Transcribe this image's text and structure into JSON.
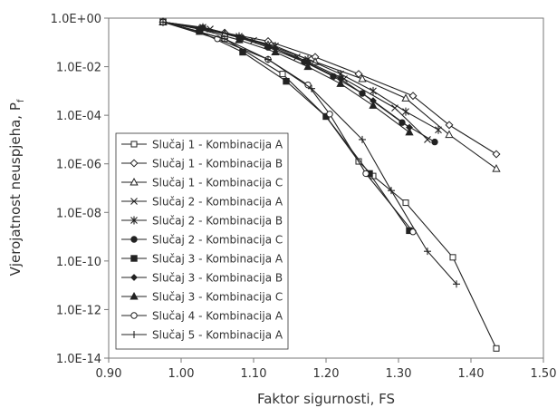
{
  "chart_data": {
    "type": "line",
    "title": "",
    "xlabel": "Faktor sigurnosti, FS",
    "ylabel": "Vjerojatnost neuspjeha, P",
    "ylabel_sub": "f",
    "xlim": [
      0.9,
      1.5
    ],
    "ylim_exp": [
      -14,
      0
    ],
    "y_scale": "log",
    "grid": false,
    "legend_position": "left-bottom",
    "x_ticks": [
      "0.90",
      "1.00",
      "1.10",
      "1.20",
      "1.30",
      "1.40",
      "1.50"
    ],
    "y_ticks": [
      "1.0E+00",
      "1.0E-02",
      "1.0E-04",
      "1.0E-06",
      "1.0E-08",
      "1.0E-10",
      "1.0E-12",
      "1.0E-14"
    ],
    "series": [
      {
        "name": "Slučaj 1 - Kombinacija A",
        "marker": "square-open",
        "x": [
          0.975,
          1.06,
          1.14,
          1.2,
          1.245,
          1.265,
          1.31,
          1.375,
          1.435
        ],
        "log10y": [
          -0.16,
          -0.85,
          -2.3,
          -4.05,
          -5.9,
          -6.5,
          -7.6,
          -9.85,
          -13.6
        ]
      },
      {
        "name": "Slučaj 1 - Kombinacija B",
        "marker": "diamond-open",
        "x": [
          0.975,
          1.06,
          1.12,
          1.185,
          1.245,
          1.32,
          1.37,
          1.435
        ],
        "log10y": [
          -0.16,
          -0.6,
          -0.95,
          -1.6,
          -2.3,
          -3.2,
          -4.4,
          -5.6
        ]
      },
      {
        "name": "Slučaj 1 - Kombinacija C",
        "marker": "triangle-open",
        "x": [
          0.975,
          1.06,
          1.12,
          1.185,
          1.25,
          1.31,
          1.37,
          1.435
        ],
        "log10y": [
          -0.16,
          -0.65,
          -1.1,
          -1.8,
          -2.5,
          -3.3,
          -4.8,
          -6.2
        ]
      },
      {
        "name": "Slučaj 2 - Kombinacija A",
        "marker": "x",
        "x": [
          0.975,
          1.04,
          1.1,
          1.16,
          1.225,
          1.295,
          1.34
        ],
        "log10y": [
          -0.16,
          -0.45,
          -0.92,
          -1.6,
          -2.5,
          -3.7,
          -5.0
        ]
      },
      {
        "name": "Slučaj 2 - Kombinacija B",
        "marker": "star",
        "x": [
          0.975,
          1.03,
          1.08,
          1.13,
          1.175,
          1.22,
          1.265,
          1.31,
          1.355
        ],
        "log10y": [
          -0.16,
          -0.38,
          -0.75,
          -1.15,
          -1.7,
          -2.3,
          -3.0,
          -3.85,
          -4.6
        ]
      },
      {
        "name": "Slučaj 2 - Kombinacija C",
        "marker": "circle-filled",
        "x": [
          0.975,
          1.03,
          1.08,
          1.12,
          1.17,
          1.21,
          1.25,
          1.305,
          1.35
        ],
        "log10y": [
          -0.16,
          -0.4,
          -0.8,
          -1.2,
          -1.8,
          -2.4,
          -3.1,
          -4.3,
          -5.1
        ]
      },
      {
        "name": "Slučaj 3 - Kombinacija A",
        "marker": "square-filled",
        "x": [
          0.975,
          1.025,
          1.085,
          1.145,
          1.2,
          1.26,
          1.315
        ],
        "log10y": [
          -0.16,
          -0.55,
          -1.4,
          -2.6,
          -4.05,
          -6.4,
          -8.75
        ]
      },
      {
        "name": "Slučaj 3 - Kombinacija B",
        "marker": "diamond-filled",
        "x": [
          0.975,
          1.03,
          1.085,
          1.13,
          1.175,
          1.22,
          1.265,
          1.315
        ],
        "log10y": [
          -0.16,
          -0.4,
          -0.8,
          -1.25,
          -1.85,
          -2.5,
          -3.4,
          -4.5
        ]
      },
      {
        "name": "Slučaj 3 - Kombinacija C",
        "marker": "triangle-filled",
        "x": [
          0.975,
          1.025,
          1.08,
          1.13,
          1.175,
          1.22,
          1.265,
          1.315
        ],
        "log10y": [
          -0.16,
          -0.45,
          -0.9,
          -1.4,
          -2.0,
          -2.7,
          -3.6,
          -4.7
        ]
      },
      {
        "name": "Slučaj 4 - Kombinacija A",
        "marker": "circle-open",
        "x": [
          0.975,
          1.05,
          1.12,
          1.175,
          1.205,
          1.255,
          1.32
        ],
        "log10y": [
          -0.16,
          -0.85,
          -1.7,
          -2.75,
          -3.95,
          -6.4,
          -8.8
        ]
      },
      {
        "name": "Slučaj 5 - Kombinacija A",
        "marker": "plus",
        "x": [
          0.975,
          1.06,
          1.12,
          1.18,
          1.25,
          1.29,
          1.34,
          1.38
        ],
        "log10y": [
          -0.16,
          -0.85,
          -1.7,
          -2.9,
          -5.0,
          -7.1,
          -9.6,
          -10.95
        ]
      }
    ]
  }
}
